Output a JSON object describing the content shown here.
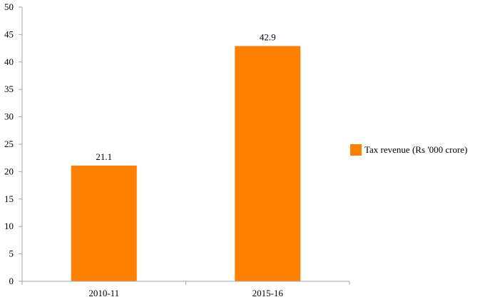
{
  "chart_data": {
    "type": "bar",
    "categories": [
      "2010-11",
      "2015-16"
    ],
    "series": [
      {
        "name": "Tax revenue (Rs '000 crore)",
        "values": [
          21.1,
          42.9
        ],
        "color": "#ff8000"
      }
    ],
    "data_labels": [
      "21.1",
      "42.9"
    ],
    "ylim": [
      0,
      50
    ],
    "yticks": [
      "0",
      "5",
      "10",
      "15",
      "20",
      "25",
      "30",
      "35",
      "40",
      "45",
      "50"
    ],
    "grid": false,
    "legend_position": "right",
    "title": "",
    "xlabel": "",
    "ylabel": ""
  }
}
